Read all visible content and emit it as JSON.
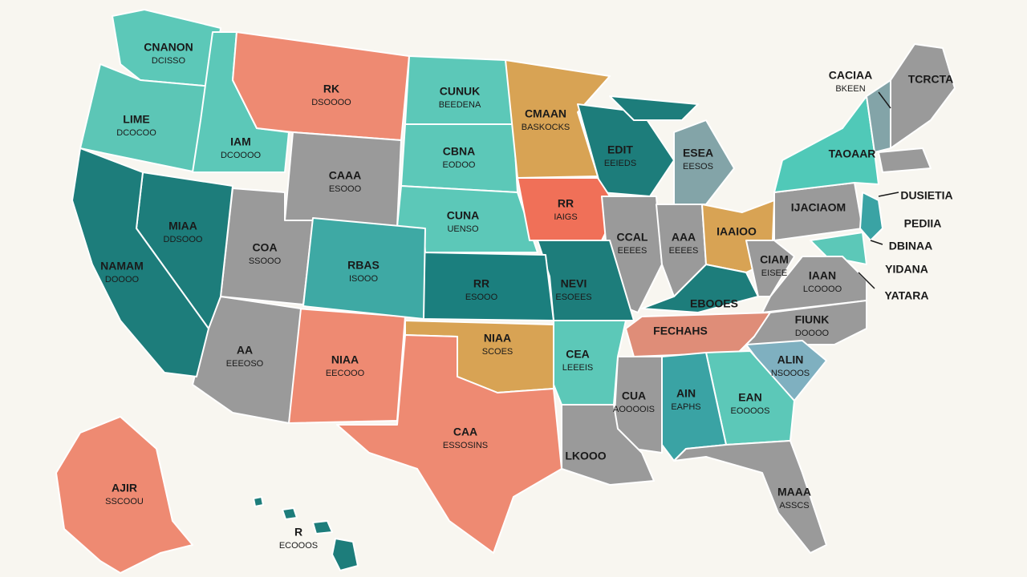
{
  "labels": [
    [
      "CNANON",
      "DCISSO"
    ],
    [
      "LIME",
      "DCOCOO"
    ],
    [
      "IAM",
      "DCOOOO"
    ],
    [
      "RK",
      "DSOOOO"
    ],
    [
      "CUNUK",
      "BEEDENA"
    ],
    [
      "CMAAN",
      "BASKOCKS"
    ],
    [
      "EDIT",
      "EEIEDS"
    ],
    [
      "ESEA",
      "EESOS"
    ],
    [
      "CACIAA",
      "BKEEN"
    ],
    [
      "TCRCTA"
    ],
    [
      "TAOAAR"
    ],
    [
      "CAAA",
      "ESOOO"
    ],
    [
      "CBNA",
      "EODOO"
    ],
    [
      "RR",
      "IAIGS"
    ],
    [
      "MIAA",
      "DDSOOO"
    ],
    [
      "CUNA",
      "UENSO"
    ],
    [
      "CCAL",
      "EEEES"
    ],
    [
      "AAA",
      "EEEES"
    ],
    [
      "IAAIOO"
    ],
    [
      "IJACIAOM"
    ],
    [
      "DUSIETIA"
    ],
    [
      "PEDIIA"
    ],
    [
      "DBINAA"
    ],
    [
      "YIDANA"
    ],
    [
      "YATARA"
    ],
    [
      "NAMAM",
      "DOOOO"
    ],
    [
      "COA",
      "SSOOO"
    ],
    [
      "RBAS",
      "ISOOO"
    ],
    [
      "RR",
      "ESOOO"
    ],
    [
      "NEVI",
      "ESOEES"
    ],
    [
      "CIAM",
      "EISEE"
    ],
    [
      "IAAN",
      "LCOOOO"
    ],
    [
      "EBOOES"
    ],
    [
      "FECHAHS"
    ],
    [
      "FIUNK",
      "DOOOO"
    ],
    [
      "AA",
      "EEEOSO"
    ],
    [
      "NIAA",
      "EECOOO"
    ],
    [
      "NIAA",
      "SCOES"
    ],
    [
      "CEA",
      "LEEEIS"
    ],
    [
      "ALIN",
      "NSOOOS"
    ],
    [
      "CUA",
      "AOOOOIS"
    ],
    [
      "AIN",
      "EAPHS"
    ],
    [
      "EAN",
      "EOOOOS"
    ],
    [
      "CAA",
      "ESSOSINS"
    ],
    [
      "LKOOO"
    ],
    [
      "MAAA",
      "ASSCS"
    ],
    [
      "AJIR",
      "SSCOOU"
    ],
    [
      "R",
      "ECOOOS"
    ]
  ]
}
